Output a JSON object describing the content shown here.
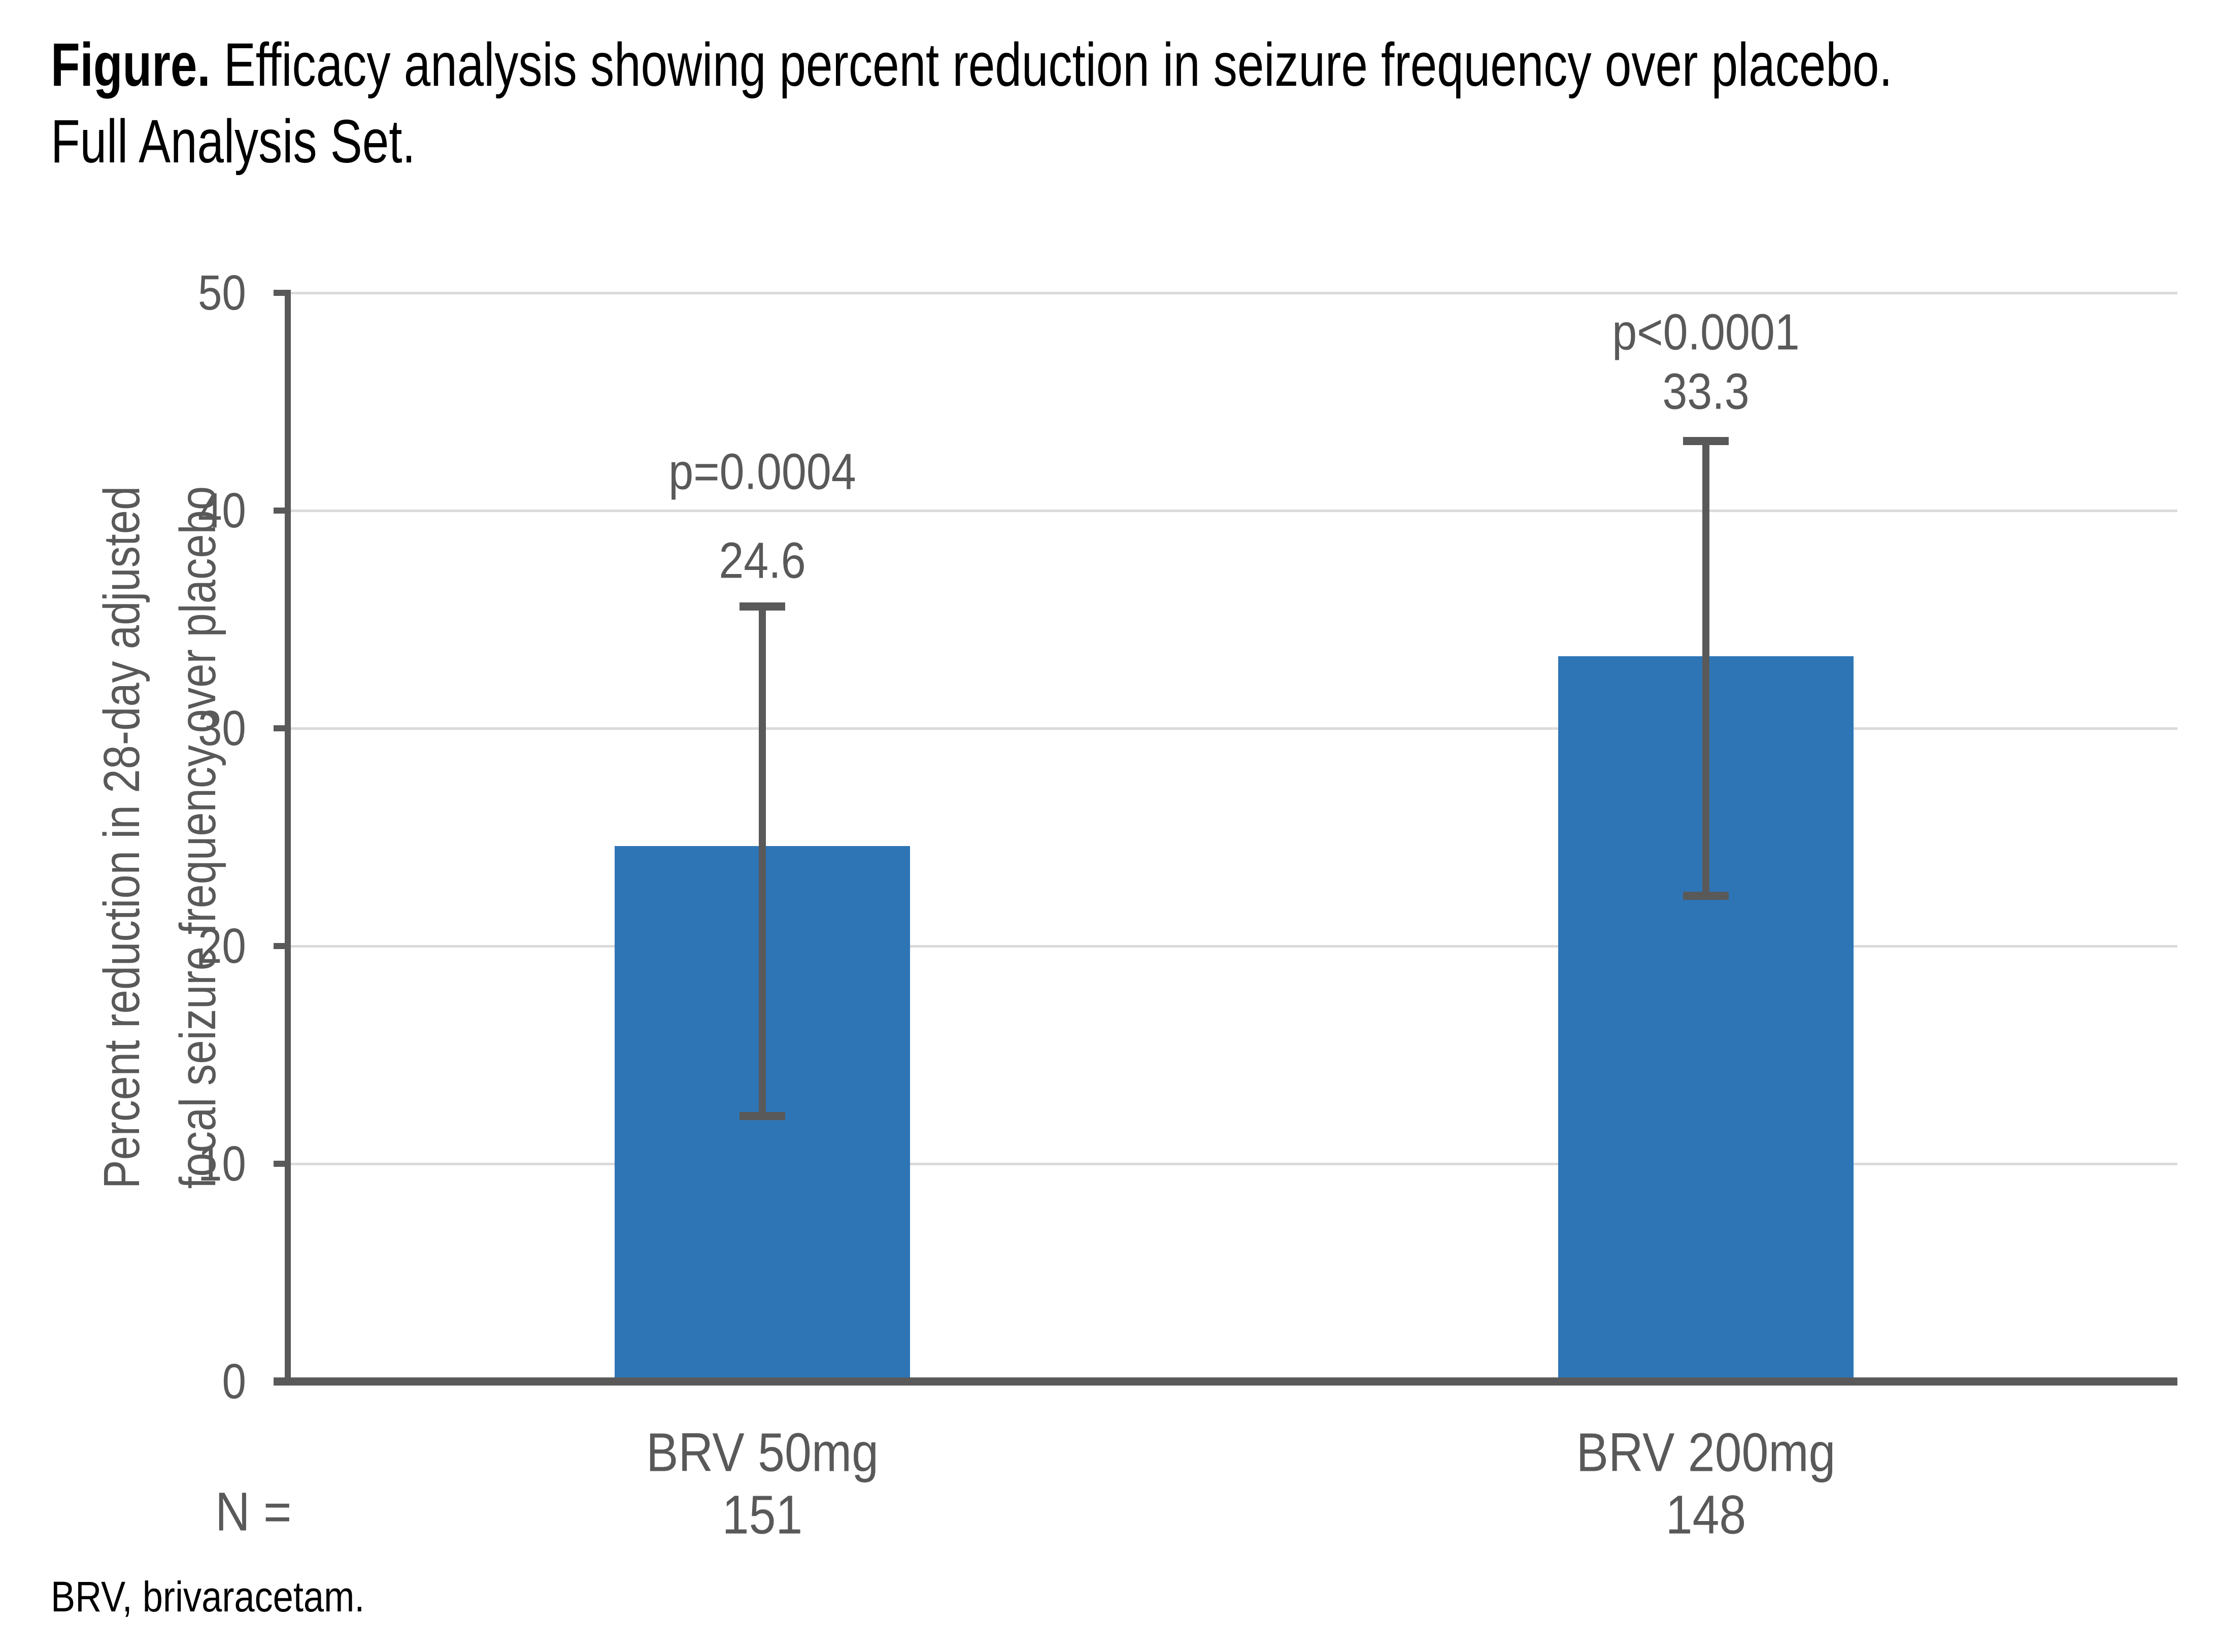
{
  "figure": {
    "title_prefix": "Figure.",
    "title_rest": " Efficacy analysis showing percent reduction in seizure frequency over placebo.",
    "title_line2": "Full Analysis Set.",
    "footnote": "BRV, brivaracetam."
  },
  "n_row": {
    "label": "N ="
  },
  "chart_data": {
    "type": "bar",
    "title": "Efficacy analysis showing percent reduction in seizure frequency over placebo. Full Analysis Set.",
    "xlabel": "",
    "ylabel_line1": "Percent reduction in 28-day adjusted",
    "ylabel_line2": "focal seizure frequency over placebo",
    "ylim": [
      0,
      50
    ],
    "yticks": [
      0,
      10,
      20,
      30,
      40,
      50
    ],
    "grid": "horizontal",
    "legend": "none",
    "bar_color": "#2E75B6",
    "axis_color": "#595959",
    "gridline_color": "#DADADA",
    "text_color": "#595959",
    "categories": [
      "BRV 50mg",
      "BRV 200mg"
    ],
    "n_values": [
      "151",
      "148"
    ],
    "series": [
      {
        "name": "Percent reduction in seizure frequency over placebo",
        "values": [
          24.6,
          33.3
        ],
        "value_labels": [
          "24.6",
          "33.3"
        ],
        "p_labels": [
          "p=0.0004",
          "p<0.0001"
        ],
        "error_low": [
          12.2,
          22.3
        ],
        "error_high": [
          35.6,
          43.2
        ]
      }
    ]
  }
}
